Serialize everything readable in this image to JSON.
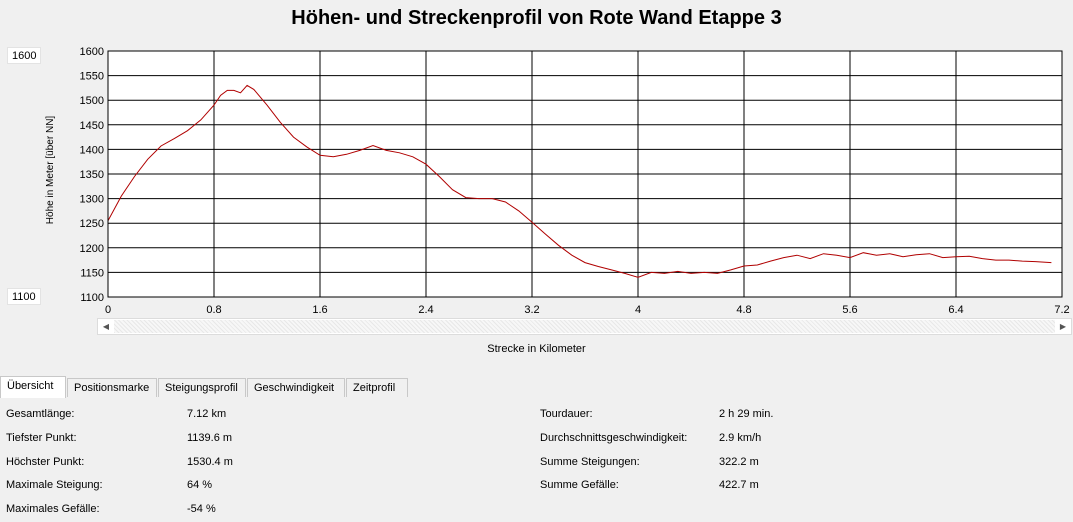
{
  "title": "Höhen- und Streckenprofil von Rote Wand Etappe 3",
  "bounds": {
    "upper": "1600",
    "lower": "1100"
  },
  "tabs": [
    {
      "label": "Übersicht",
      "active": true
    },
    {
      "label": "Positionsmarke",
      "active": false
    },
    {
      "label": "Steigungsprofil",
      "active": false
    },
    {
      "label": "Geschwindigkeit",
      "active": false
    },
    {
      "label": "Zeitprofil",
      "active": false
    }
  ],
  "stats_left": [
    {
      "label": "Gesamtlänge:",
      "value": "7.12 km"
    },
    {
      "label": "Tiefster Punkt:",
      "value": "1139.6 m"
    },
    {
      "label": "Höchster Punkt:",
      "value": "1530.4 m"
    },
    {
      "label": "Maximale Steigung:",
      "value": "64 %"
    },
    {
      "label": "Maximales Gefälle:",
      "value": "-54 %"
    }
  ],
  "stats_right": [
    {
      "label": "Tourdauer:",
      "value": "2 h 29 min."
    },
    {
      "label": "Durchschnittsgeschwindigkeit:",
      "value": "2.9 km/h"
    },
    {
      "label": "Summe Steigungen:",
      "value": "322.2 m"
    },
    {
      "label": "Summe Gefälle:",
      "value": "422.7 m"
    }
  ],
  "chart_data": {
    "type": "line",
    "title": "Höhen- und Streckenprofil von Rote Wand Etappe 3",
    "xlabel": "Strecke in Kilometer",
    "ylabel": "Höhe in Meter [über NN]",
    "xlim": [
      0,
      7.2
    ],
    "ylim": [
      1100,
      1600
    ],
    "xticks": [
      "0",
      "0.8",
      "1.6",
      "2.4",
      "3.2",
      "4",
      "4.8",
      "5.6",
      "6.4",
      "7.2"
    ],
    "yticks": [
      "1600",
      "1550",
      "1500",
      "1450",
      "1400",
      "1350",
      "1300",
      "1250",
      "1200",
      "1150",
      "1100"
    ],
    "grid": true,
    "line_color": "#b00000",
    "series": [
      {
        "x": [
          0,
          0.1,
          0.2,
          0.3,
          0.4,
          0.5,
          0.6,
          0.7,
          0.8,
          0.85,
          0.9,
          0.95,
          1.0,
          1.05,
          1.1,
          1.2,
          1.3,
          1.4,
          1.5,
          1.6,
          1.7,
          1.8,
          1.9,
          2.0,
          2.1,
          2.2,
          2.3,
          2.4,
          2.5,
          2.6,
          2.7,
          2.8,
          2.9,
          3.0,
          3.1,
          3.2,
          3.3,
          3.4,
          3.5,
          3.6,
          3.7,
          3.8,
          3.9,
          4.0,
          4.1,
          4.2,
          4.3,
          4.4,
          4.5,
          4.6,
          4.7,
          4.8,
          4.9,
          5.0,
          5.1,
          5.2,
          5.3,
          5.4,
          5.5,
          5.6,
          5.7,
          5.8,
          5.9,
          6.0,
          6.1,
          6.2,
          6.3,
          6.4,
          6.5,
          6.6,
          6.7,
          6.8,
          6.9,
          7.0,
          7.12
        ],
        "y": [
          1255,
          1305,
          1345,
          1380,
          1407,
          1422,
          1438,
          1460,
          1490,
          1510,
          1520,
          1520,
          1515,
          1530,
          1522,
          1490,
          1455,
          1425,
          1405,
          1388,
          1385,
          1390,
          1398,
          1408,
          1398,
          1393,
          1385,
          1370,
          1345,
          1318,
          1302,
          1300,
          1300,
          1293,
          1275,
          1252,
          1228,
          1205,
          1185,
          1170,
          1162,
          1155,
          1148,
          1140,
          1150,
          1148,
          1152,
          1148,
          1150,
          1148,
          1155,
          1163,
          1165,
          1173,
          1180,
          1185,
          1178,
          1188,
          1185,
          1180,
          1190,
          1185,
          1188,
          1182,
          1186,
          1188,
          1180,
          1182,
          1183,
          1178,
          1175,
          1175,
          1173,
          1172,
          1170
        ]
      }
    ]
  }
}
